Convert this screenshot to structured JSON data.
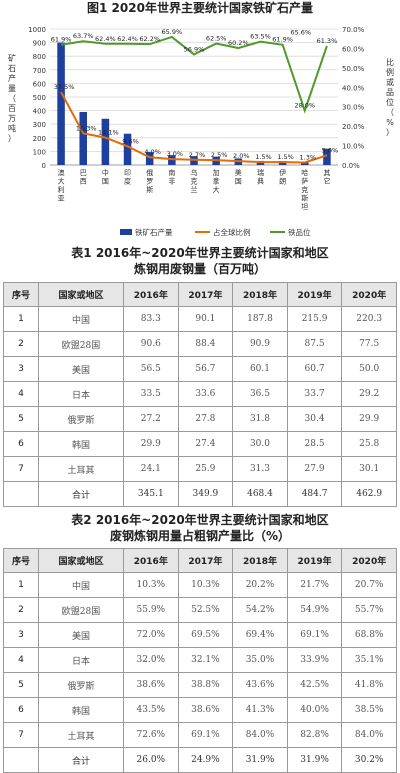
{
  "chart_title": "图1 2020年世界主要统计国家铁矿石产量",
  "chart_data": {
    "type": "bar",
    "categories": [
      "澳大利亚",
      "巴西",
      "中国",
      "印度",
      "俄罗斯",
      "南非",
      "乌克兰",
      "加拿大",
      "美国",
      "瑞典",
      "伊朗",
      "哈萨克斯坦",
      "其它"
    ],
    "series": [
      {
        "name": "铁矿石产量",
        "type": "bar",
        "axis": "left",
        "color": "#1f3f9e",
        "values": [
          900,
          390,
          340,
          230,
          95,
          72,
          65,
          60,
          48,
          30,
          28,
          22,
          120
        ]
      },
      {
        "name": "占全球比例",
        "type": "line",
        "axis": "right",
        "color": "#e36c09",
        "values": [
          37.5,
          16.3,
          14.1,
          9.6,
          4.0,
          3.0,
          2.7,
          2.5,
          2.0,
          1.5,
          1.5,
          1.3,
          5.0
        ],
        "labels": [
          "37.5%",
          "16.3%",
          "14.1%",
          "9.6%",
          "4.0%",
          "3.0%",
          "2.7%",
          "2.5%",
          "2.0%",
          "1.5%",
          "1.5%",
          "1.3%",
          "5.0%"
        ]
      },
      {
        "name": "铁品位",
        "type": "line",
        "axis": "right",
        "color": "#4e9a2a",
        "values": [
          61.9,
          63.7,
          62.4,
          62.4,
          62.2,
          65.9,
          56.9,
          62.5,
          60.2,
          63.5,
          61.9,
          28.0,
          61.3
        ],
        "labels": [
          "61.9%",
          "63.7%",
          "62.4%",
          "62.4%",
          "62.2%",
          "65.9%",
          "56.9%",
          "62.5%",
          "60.2%",
          "63.5%",
          "61.9%",
          "28.0%",
          "61.3%"
        ],
        "extra_label": "65.6%"
      }
    ],
    "ylabel_left": "矿石产量（百万吨）",
    "ylabel_right": "比例或品位（%）",
    "ylim_left": [
      0,
      1000
    ],
    "ylim_right": [
      0,
      70
    ],
    "yticks_left": [
      "0",
      "100",
      "200",
      "300",
      "400",
      "500",
      "600",
      "700",
      "800",
      "900",
      "1000"
    ],
    "yticks_right": [
      "0.0%",
      "10.0%",
      "20.0%",
      "30.0%",
      "40.0%",
      "50.0%",
      "60.0%",
      "70.0%"
    ],
    "grid": true,
    "legend": "bottom"
  },
  "table1": {
    "title_line1": "表1  2016年~2020年世界主要统计国家和地区",
    "title_line2": "炼钢用废钢量（百万吨）",
    "headers": [
      "序号",
      "国家或地区",
      "2016年",
      "2017年",
      "2018年",
      "2019年",
      "2020年"
    ],
    "rows": [
      [
        "1",
        "中国",
        "83.3",
        "90.1",
        "187.8",
        "215.9",
        "220.3"
      ],
      [
        "2",
        "欧盟28国",
        "90.6",
        "88.4",
        "90.9",
        "87.5",
        "77.5"
      ],
      [
        "3",
        "美国",
        "56.5",
        "56.7",
        "60.1",
        "60.7",
        "50.0"
      ],
      [
        "4",
        "日本",
        "33.5",
        "33.6",
        "36.5",
        "33.7",
        "29.2"
      ],
      [
        "5",
        "俄罗斯",
        "27.2",
        "27.8",
        "31.8",
        "30.4",
        "29.9"
      ],
      [
        "6",
        "韩国",
        "29.9",
        "27.4",
        "30.0",
        "28.5",
        "25.8"
      ],
      [
        "7",
        "土耳其",
        "24.1",
        "25.9",
        "31.3",
        "27.9",
        "30.1"
      ],
      [
        "",
        "合计",
        "345.1",
        "349.9",
        "468.4",
        "484.7",
        "462.9"
      ]
    ]
  },
  "table2": {
    "title_line1": "表2  2016年~2020年世界主要统计国家和地区",
    "title_line2": "废钢炼钢用量占粗钢产量比（%）",
    "headers": [
      "序号",
      "国家或地区",
      "2016年",
      "2017年",
      "2018年",
      "2019年",
      "2020年"
    ],
    "rows": [
      [
        "1",
        "中国",
        "10.3%",
        "10.3%",
        "20.2%",
        "21.7%",
        "20.7%"
      ],
      [
        "2",
        "欧盟28国",
        "55.9%",
        "52.5%",
        "54.2%",
        "54.9%",
        "55.7%"
      ],
      [
        "3",
        "美国",
        "72.0%",
        "69.5%",
        "69.4%",
        "69.1%",
        "68.8%"
      ],
      [
        "4",
        "日本",
        "32.0%",
        "32.1%",
        "35.0%",
        "33.9%",
        "35.1%"
      ],
      [
        "5",
        "俄罗斯",
        "38.6%",
        "38.8%",
        "43.6%",
        "42.5%",
        "41.8%"
      ],
      [
        "6",
        "韩国",
        "43.5%",
        "38.6%",
        "41.3%",
        "40.0%",
        "38.5%"
      ],
      [
        "7",
        "土耳其",
        "72.6%",
        "69.1%",
        "84.0%",
        "82.8%",
        "84.0%"
      ],
      [
        "",
        "合计",
        "26.0%",
        "24.9%",
        "31.9%",
        "31.9%",
        "30.2%"
      ]
    ]
  }
}
